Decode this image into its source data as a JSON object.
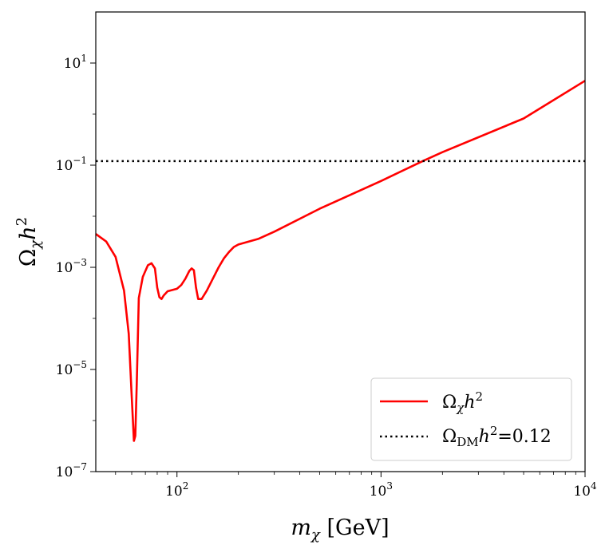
{
  "chart_data": {
    "type": "line",
    "x_scale": "log",
    "y_scale": "log",
    "xlim": [
      40,
      10000
    ],
    "ylim": [
      1e-07,
      100
    ],
    "xticks": [
      {
        "value": 100,
        "base": "10",
        "exp": "2"
      },
      {
        "value": 1000,
        "base": "10",
        "exp": "3"
      },
      {
        "value": 10000,
        "base": "10",
        "exp": "4"
      }
    ],
    "yticks": [
      {
        "value": 1e-07,
        "base": "10",
        "exp": "−7"
      },
      {
        "value": 1e-05,
        "base": "10",
        "exp": "−5"
      },
      {
        "value": 0.001,
        "base": "10",
        "exp": "−3"
      },
      {
        "value": 0.1,
        "base": "10",
        "exp": "−1"
      },
      {
        "value": 10,
        "base": "10",
        "exp": "1"
      }
    ],
    "xlabel": {
      "italic": "m",
      "sub": "χ",
      "rest": " [GeV]"
    },
    "ylabel": {
      "main": "Ω",
      "sub": "χ",
      "italic": "h",
      "sup": "2"
    },
    "grid": false,
    "legend_position": "bottom-right",
    "series": [
      {
        "name_parts": {
          "main": "Ω",
          "sub": "χ",
          "italic": "h",
          "sup": "2",
          "tail": ""
        },
        "color": "#ff0000",
        "style": "solid",
        "x": [
          40,
          45,
          50,
          55,
          58,
          60,
          61.5,
          62.5,
          63.5,
          65,
          68,
          72,
          75,
          78,
          80,
          82,
          84,
          86,
          90,
          95,
          100,
          105,
          110,
          115,
          118,
          121,
          124,
          127,
          132,
          140,
          150,
          160,
          170,
          180,
          190,
          200,
          250,
          300,
          500,
          1000,
          1600,
          2000,
          5000,
          10000
        ],
        "y": [
          0.0045,
          0.0032,
          0.0016,
          0.00035,
          5e-05,
          3e-06,
          4e-07,
          5e-07,
          5e-06,
          0.00025,
          0.00065,
          0.0011,
          0.0012,
          0.00095,
          0.0004,
          0.00026,
          0.00024,
          0.00028,
          0.00034,
          0.00036,
          0.00038,
          0.00045,
          0.0006,
          0.00085,
          0.00095,
          0.00088,
          0.0004,
          0.00024,
          0.00024,
          0.00035,
          0.0006,
          0.001,
          0.0015,
          0.002,
          0.0025,
          0.0028,
          0.0036,
          0.005,
          0.014,
          0.049,
          0.12,
          0.18,
          0.82,
          4.5
        ]
      },
      {
        "name_parts": {
          "main": "Ω",
          "sub": "DM",
          "italic": "h",
          "sup": "2",
          "tail": "=0.12"
        },
        "color": "#000000",
        "style": "dotted",
        "x": [
          40,
          10000
        ],
        "y": [
          0.12,
          0.12
        ]
      }
    ]
  }
}
